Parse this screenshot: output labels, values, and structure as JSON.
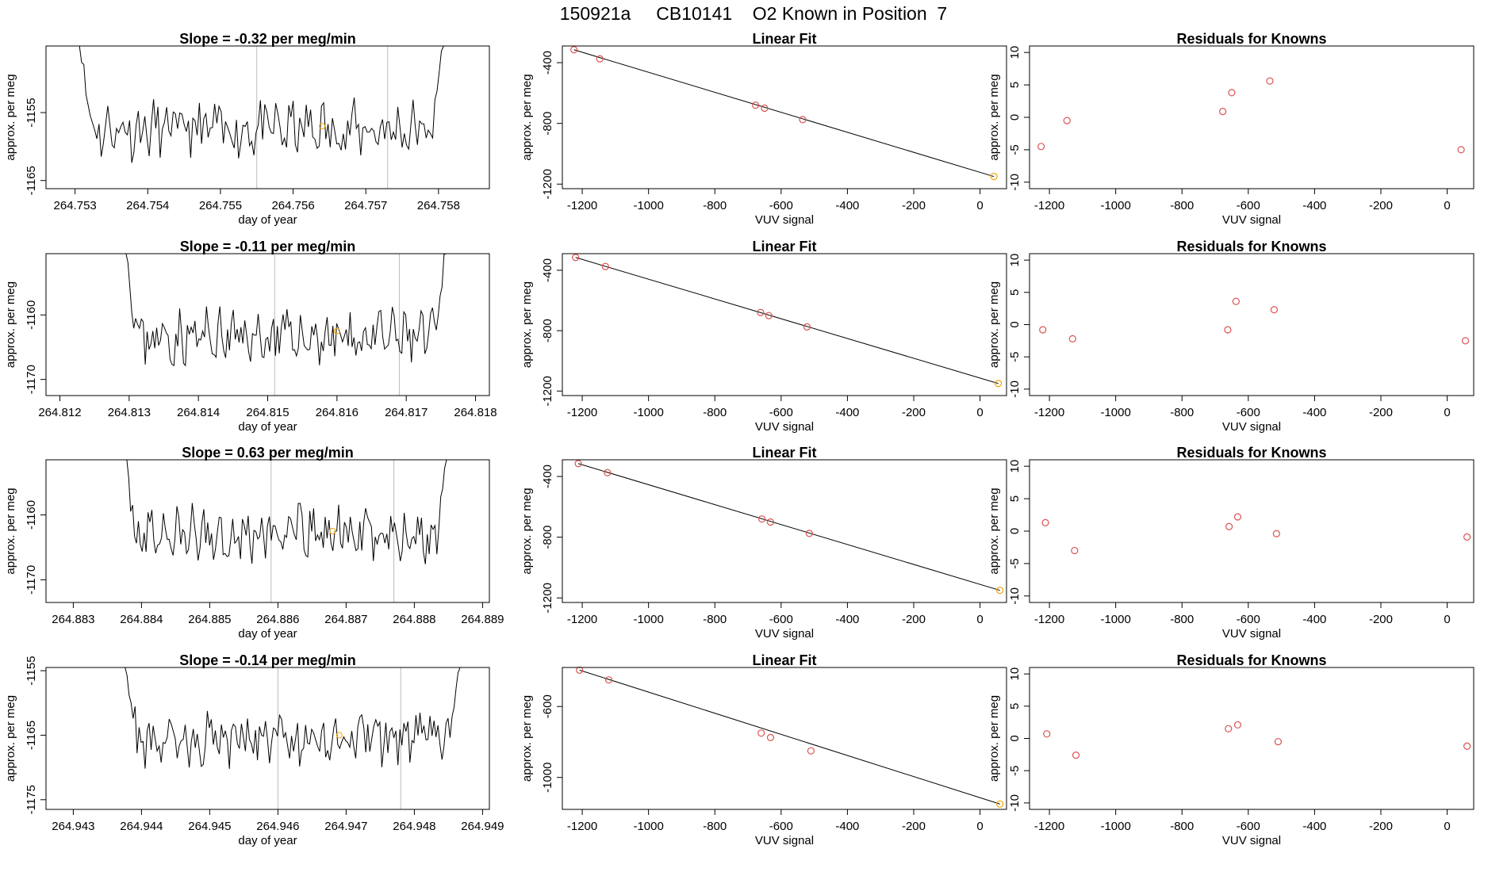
{
  "figure_title": "150921a     CB10141    O2 Known in Position  7",
  "colors": {
    "points": "#d9534f",
    "known": "#f0a500",
    "line": "#000000",
    "vline": "#bbbbbb"
  },
  "rows": [
    {
      "time_panel": {
        "title": "Slope =  -0.32  per meg/min",
        "xlabel": "day of year",
        "ylabel": "approx. per meg",
        "xlim": [
          264.7526,
          264.7587
        ],
        "ylim": [
          -1166.2,
          -1145.2
        ],
        "xticks": [
          "264.753",
          "264.754",
          "264.755",
          "264.756",
          "264.757",
          "264.758"
        ],
        "yticks": [
          "-1155",
          "-1165"
        ],
        "vlines": [
          264.7555,
          264.7573
        ],
        "marker": [
          264.7564,
          -1157.0
        ],
        "trace_start": 264.753,
        "trace_end": 264.7581,
        "base": -1157.5,
        "seed": 11
      },
      "fit_panel": {
        "title": "Linear Fit",
        "xlabel": "VUV signal",
        "ylabel": "approx. per meg",
        "xlim": [
          -1260,
          80
        ],
        "ylim": [
          -1230,
          -290
        ],
        "xticks": [
          "-1200",
          "-1000",
          "-800",
          "-600",
          "-400",
          "-200",
          "0"
        ],
        "yticks": [
          "-400",
          "-800",
          "-1200"
        ],
        "points": [
          [
            -1225,
            -315
          ],
          [
            -1147,
            -375
          ],
          [
            -677,
            -680
          ],
          [
            -650,
            -700
          ],
          [
            -535,
            -775
          ],
          [
            42,
            -1150
          ]
        ],
        "line": [
          [
            -1225,
            -315
          ],
          [
            42,
            -1150
          ]
        ],
        "known_index": 5
      },
      "resid_panel": {
        "title": "Residuals for Knowns",
        "xlabel": "VUV signal",
        "ylabel": "approx. per meg",
        "xlim": [
          -1260,
          80
        ],
        "ylim": [
          -11,
          11
        ],
        "xticks": [
          "-1200",
          "-1000",
          "-800",
          "-600",
          "-400",
          "-200",
          "0"
        ],
        "yticks": [
          "10",
          "5",
          "0",
          "-5",
          "-10"
        ],
        "points": [
          [
            -1225,
            -4.5
          ],
          [
            -1147,
            -0.5
          ],
          [
            -677,
            0.9
          ],
          [
            -650,
            3.8
          ],
          [
            -535,
            5.6
          ],
          [
            42,
            -5.0
          ]
        ]
      }
    },
    {
      "time_panel": {
        "title": "Slope =  -0.11  per meg/min",
        "xlabel": "day of year",
        "ylabel": "approx. per meg",
        "xlim": [
          264.8118,
          264.8182
        ],
        "ylim": [
          -1172.5,
          -1150.5
        ],
        "xticks": [
          "264.812",
          "264.813",
          "264.814",
          "264.815",
          "264.816",
          "264.817",
          "264.818"
        ],
        "yticks": [
          "-1160",
          "-1170"
        ],
        "vlines": [
          264.8151,
          264.8169
        ],
        "marker": [
          264.816,
          -1162.5
        ],
        "trace_start": 264.8129,
        "trace_end": 264.8176,
        "base": -1163.5,
        "seed": 23
      },
      "fit_panel": {
        "title": "Linear Fit",
        "xlabel": "VUV signal",
        "ylabel": "approx. per meg",
        "xlim": [
          -1260,
          80
        ],
        "ylim": [
          -1230,
          -290
        ],
        "xticks": [
          "-1200",
          "-1000",
          "-800",
          "-600",
          "-400",
          "-200",
          "0"
        ],
        "yticks": [
          "-400",
          "-800",
          "-1200"
        ],
        "points": [
          [
            -1220,
            -315
          ],
          [
            -1130,
            -375
          ],
          [
            -662,
            -680
          ],
          [
            -637,
            -700
          ],
          [
            -522,
            -775
          ],
          [
            55,
            -1150
          ]
        ],
        "line": [
          [
            -1220,
            -315
          ],
          [
            55,
            -1150
          ]
        ],
        "known_index": 5
      },
      "resid_panel": {
        "title": "Residuals for Knowns",
        "xlabel": "VUV signal",
        "ylabel": "approx. per meg",
        "xlim": [
          -1260,
          80
        ],
        "ylim": [
          -11,
          11
        ],
        "xticks": [
          "-1200",
          "-1000",
          "-800",
          "-600",
          "-400",
          "-200",
          "0"
        ],
        "yticks": [
          "10",
          "5",
          "0",
          "-5",
          "-10"
        ],
        "points": [
          [
            -1220,
            -0.8
          ],
          [
            -1130,
            -2.2
          ],
          [
            -662,
            -0.8
          ],
          [
            -637,
            3.6
          ],
          [
            -522,
            2.3
          ],
          [
            55,
            -2.5
          ]
        ]
      }
    },
    {
      "time_panel": {
        "title": "Slope =  0.63  per meg/min",
        "xlabel": "day of year",
        "ylabel": "approx. per meg",
        "xlim": [
          264.8826,
          264.8891
        ],
        "ylim": [
          -1173.5,
          -1151.5
        ],
        "xticks": [
          "264.883",
          "264.884",
          "264.885",
          "264.886",
          "264.887",
          "264.888",
          "264.889"
        ],
        "yticks": [
          "-1160",
          "-1170"
        ],
        "vlines": [
          264.8859,
          264.8877
        ],
        "marker": [
          264.8868,
          -1162.5
        ],
        "trace_start": 264.8837,
        "trace_end": 264.8885,
        "base": -1163.0,
        "seed": 37
      },
      "fit_panel": {
        "title": "Linear Fit",
        "xlabel": "VUV signal",
        "ylabel": "approx. per meg",
        "xlim": [
          -1260,
          80
        ],
        "ylim": [
          -1230,
          -290
        ],
        "xticks": [
          "-1200",
          "-1000",
          "-800",
          "-600",
          "-400",
          "-200",
          "0"
        ],
        "yticks": [
          "-400",
          "-800",
          "-1200"
        ],
        "points": [
          [
            -1212,
            -315
          ],
          [
            -1124,
            -375
          ],
          [
            -658,
            -680
          ],
          [
            -632,
            -700
          ],
          [
            -515,
            -775
          ],
          [
            60,
            -1150
          ]
        ],
        "line": [
          [
            -1212,
            -315
          ],
          [
            60,
            -1150
          ]
        ],
        "known_index": 5
      },
      "resid_panel": {
        "title": "Residuals for Knowns",
        "xlabel": "VUV signal",
        "ylabel": "approx. per meg",
        "xlim": [
          -1260,
          80
        ],
        "ylim": [
          -11,
          11
        ],
        "xticks": [
          "-1200",
          "-1000",
          "-800",
          "-600",
          "-400",
          "-200",
          "0"
        ],
        "yticks": [
          "10",
          "5",
          "0",
          "-5",
          "-10"
        ],
        "points": [
          [
            -1212,
            1.3
          ],
          [
            -1124,
            -3.0
          ],
          [
            -658,
            0.7
          ],
          [
            -632,
            2.2
          ],
          [
            -515,
            -0.4
          ],
          [
            60,
            -0.9
          ]
        ]
      }
    },
    {
      "time_panel": {
        "title": "Slope =  -0.14  per meg/min",
        "xlabel": "day of year",
        "ylabel": "approx. per meg",
        "xlim": [
          264.9426,
          264.9491
        ],
        "ylim": [
          -1176.5,
          -1154.5
        ],
        "xticks": [
          "264.943",
          "264.944",
          "264.945",
          "264.946",
          "264.947",
          "264.948",
          "264.949"
        ],
        "yticks": [
          "-1155",
          "-1165",
          "-1175"
        ],
        "vlines": [
          264.946,
          264.9478
        ],
        "marker": [
          264.9469,
          -1165.0
        ],
        "trace_start": 264.9437,
        "trace_end": 264.9487,
        "base": -1165.5,
        "seed": 53
      },
      "fit_panel": {
        "title": "Linear Fit",
        "xlabel": "VUV signal",
        "ylabel": "approx. per meg",
        "xlim": [
          -1260,
          80
        ],
        "ylim": [
          -1180,
          -380
        ],
        "xticks": [
          "-1200",
          "-1000",
          "-800",
          "-600",
          "-400",
          "-200",
          "0"
        ],
        "yticks": [
          "-600",
          "-1000"
        ],
        "points": [
          [
            -1208,
            -395
          ],
          [
            -1120,
            -450
          ],
          [
            -660,
            -750
          ],
          [
            -632,
            -775
          ],
          [
            -510,
            -850
          ],
          [
            60,
            -1150
          ]
        ],
        "line": [
          [
            -1208,
            -395
          ],
          [
            60,
            -1150
          ]
        ],
        "known_index": 5
      },
      "resid_panel": {
        "title": "Residuals for Knowns",
        "xlabel": "VUV signal",
        "ylabel": "approx. per meg",
        "xlim": [
          -1260,
          80
        ],
        "ylim": [
          -11,
          11
        ],
        "xticks": [
          "-1200",
          "-1000",
          "-800",
          "-600",
          "-400",
          "-200",
          "0"
        ],
        "yticks": [
          "10",
          "5",
          "0",
          "-5",
          "-10"
        ],
        "points": [
          [
            -1208,
            0.7
          ],
          [
            -1120,
            -2.6
          ],
          [
            -660,
            1.5
          ],
          [
            -632,
            2.1
          ],
          [
            -510,
            -0.5
          ],
          [
            60,
            -1.2
          ]
        ]
      }
    }
  ],
  "chart_data": [
    {
      "type": "line",
      "title": "Slope =  -0.32  per meg/min",
      "xlabel": "day of year",
      "ylabel": "approx. per meg",
      "xlim": [
        264.7526,
        264.7587
      ],
      "ylim": [
        -1166.2,
        -1145.2
      ]
    },
    {
      "type": "scatter",
      "title": "Linear Fit",
      "xlabel": "VUV signal",
      "ylabel": "approx. per meg",
      "x": [
        -1225,
        -1147,
        -677,
        -650,
        -535,
        42
      ],
      "y": [
        -315,
        -375,
        -680,
        -700,
        -775,
        -1150
      ]
    },
    {
      "type": "scatter",
      "title": "Residuals for Knowns",
      "xlabel": "VUV signal",
      "ylabel": "approx. per meg",
      "x": [
        -1225,
        -1147,
        -677,
        -650,
        -535,
        42
      ],
      "y": [
        -4.5,
        -0.5,
        0.9,
        3.8,
        5.6,
        -5.0
      ]
    },
    {
      "type": "line",
      "title": "Slope =  -0.11  per meg/min",
      "xlabel": "day of year",
      "ylabel": "approx. per meg",
      "xlim": [
        264.8118,
        264.8182
      ],
      "ylim": [
        -1172.5,
        -1150.5
      ]
    },
    {
      "type": "scatter",
      "title": "Linear Fit",
      "xlabel": "VUV signal",
      "ylabel": "approx. per meg",
      "x": [
        -1220,
        -1130,
        -662,
        -637,
        -522,
        55
      ],
      "y": [
        -315,
        -375,
        -680,
        -700,
        -775,
        -1150
      ]
    },
    {
      "type": "scatter",
      "title": "Residuals for Knowns",
      "xlabel": "VUV signal",
      "ylabel": "approx. per meg",
      "x": [
        -1220,
        -1130,
        -662,
        -637,
        -522,
        55
      ],
      "y": [
        -0.8,
        -2.2,
        -0.8,
        3.6,
        2.3,
        -2.5
      ]
    },
    {
      "type": "line",
      "title": "Slope =  0.63  per meg/min",
      "xlabel": "day of year",
      "ylabel": "approx. per meg",
      "xlim": [
        264.8826,
        264.8891
      ],
      "ylim": [
        -1173.5,
        -1151.5
      ]
    },
    {
      "type": "scatter",
      "title": "Linear Fit",
      "xlabel": "VUV signal",
      "ylabel": "approx. per meg",
      "x": [
        -1212,
        -1124,
        -658,
        -632,
        -515,
        60
      ],
      "y": [
        -315,
        -375,
        -680,
        -700,
        -775,
        -1150
      ]
    },
    {
      "type": "scatter",
      "title": "Residuals for Knowns",
      "xlabel": "VUV signal",
      "ylabel": "approx. per meg",
      "x": [
        -1212,
        -1124,
        -658,
        -632,
        -515,
        60
      ],
      "y": [
        1.3,
        -3.0,
        0.7,
        2.2,
        -0.4,
        -0.9
      ]
    },
    {
      "type": "line",
      "title": "Slope =  -0.14  per meg/min",
      "xlabel": "day of year",
      "ylabel": "approx. per meg",
      "xlim": [
        264.9426,
        264.9491
      ],
      "ylim": [
        -1176.5,
        -1154.5
      ]
    },
    {
      "type": "scatter",
      "title": "Linear Fit",
      "xlabel": "VUV signal",
      "ylabel": "approx. per meg",
      "x": [
        -1208,
        -1120,
        -660,
        -632,
        -510,
        60
      ],
      "y": [
        -395,
        -450,
        -750,
        -775,
        -850,
        -1150
      ]
    },
    {
      "type": "scatter",
      "title": "Residuals for Knowns",
      "xlabel": "VUV signal",
      "ylabel": "approx. per meg",
      "x": [
        -1208,
        -1120,
        -660,
        -632,
        -510,
        60
      ],
      "y": [
        0.7,
        -2.6,
        1.5,
        2.1,
        -0.5,
        -1.2
      ]
    }
  ]
}
